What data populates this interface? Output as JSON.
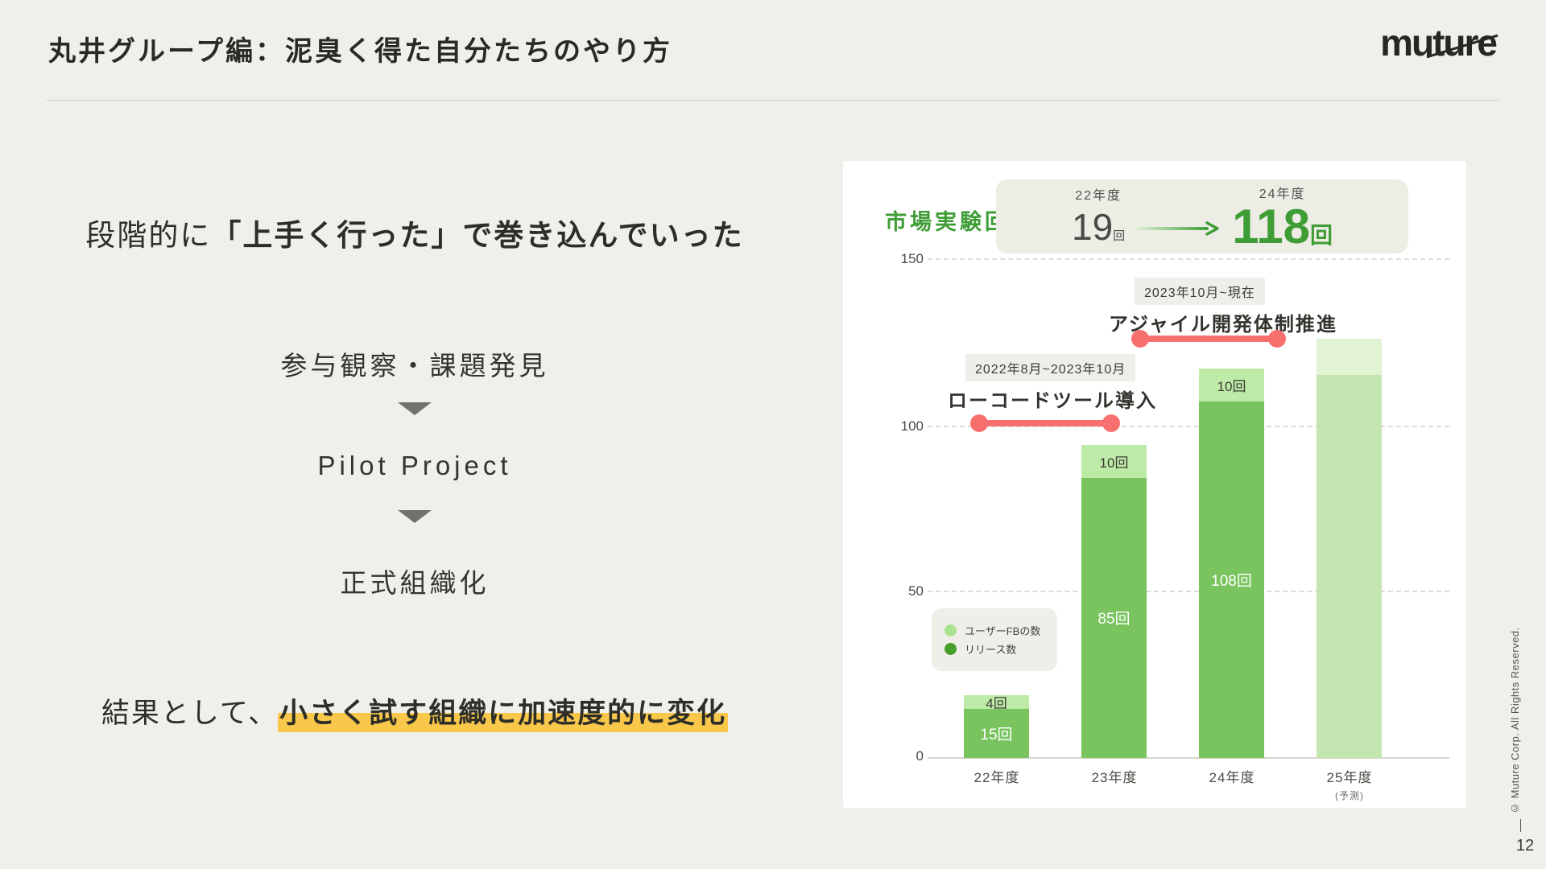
{
  "slide": {
    "title": "丸井グループ編：泥臭く得た自分たちのやり方",
    "logo": "muture",
    "page_number": "12",
    "copyright": "© Muture Corp. All Rights Reserved."
  },
  "left_content": {
    "lead": {
      "regular": "段階的に",
      "bold": "「上手く行った」で巻き込んでいった"
    },
    "flow_steps": [
      "参与観察・課題発見",
      "Pilot Project",
      "正式組織化"
    ],
    "result": {
      "regular": "結果として、",
      "highlighted": "小さく試す組織に加速度的に変化"
    }
  },
  "chart_data": {
    "type": "bar",
    "stacked": true,
    "title": "市場実験回数",
    "categories": [
      "22年度",
      "23年度",
      "24年度",
      "25年度"
    ],
    "forecast_note": "(予測)",
    "series": [
      {
        "name": "リリース数",
        "values": [
          15,
          85,
          108,
          116
        ],
        "labels": [
          "15回",
          "85回",
          "108回",
          ""
        ]
      },
      {
        "name": "ユーザーFBの数",
        "values": [
          4,
          10,
          10,
          11
        ],
        "labels": [
          "4回",
          "10回",
          "10回",
          ""
        ]
      }
    ],
    "ylim": [
      0,
      150
    ],
    "yticks": [
      "150",
      "100",
      "50",
      "0"
    ],
    "grid": "dashed-horizontal",
    "legend_position": "bottom-left-inside",
    "legend": [
      {
        "label": "ユーザーFBの数",
        "color": "#ABE394"
      },
      {
        "label": "リリース数",
        "color": "#47A02A"
      }
    ],
    "highlight_stat": {
      "from_year": "22年度",
      "from_value": "19",
      "from_unit": "回",
      "to_year": "24年度",
      "to_value": "118",
      "to_unit": "回"
    },
    "annotations": [
      {
        "period": "2022年8月~2023年10月",
        "label": "ローコードツール導入"
      },
      {
        "period": "2023年10月~現在",
        "label": "アジャイル開発体制推進"
      }
    ],
    "colors": {
      "release": "#79C45F",
      "fb": "#BDEBA7",
      "forecast_release": "#C4E4B0",
      "forecast_fb": "#E1F3D3",
      "accent_green": "#3F9D35",
      "annotation_red": "#F8706E",
      "highlight_yellow": "#F9C84B"
    }
  }
}
